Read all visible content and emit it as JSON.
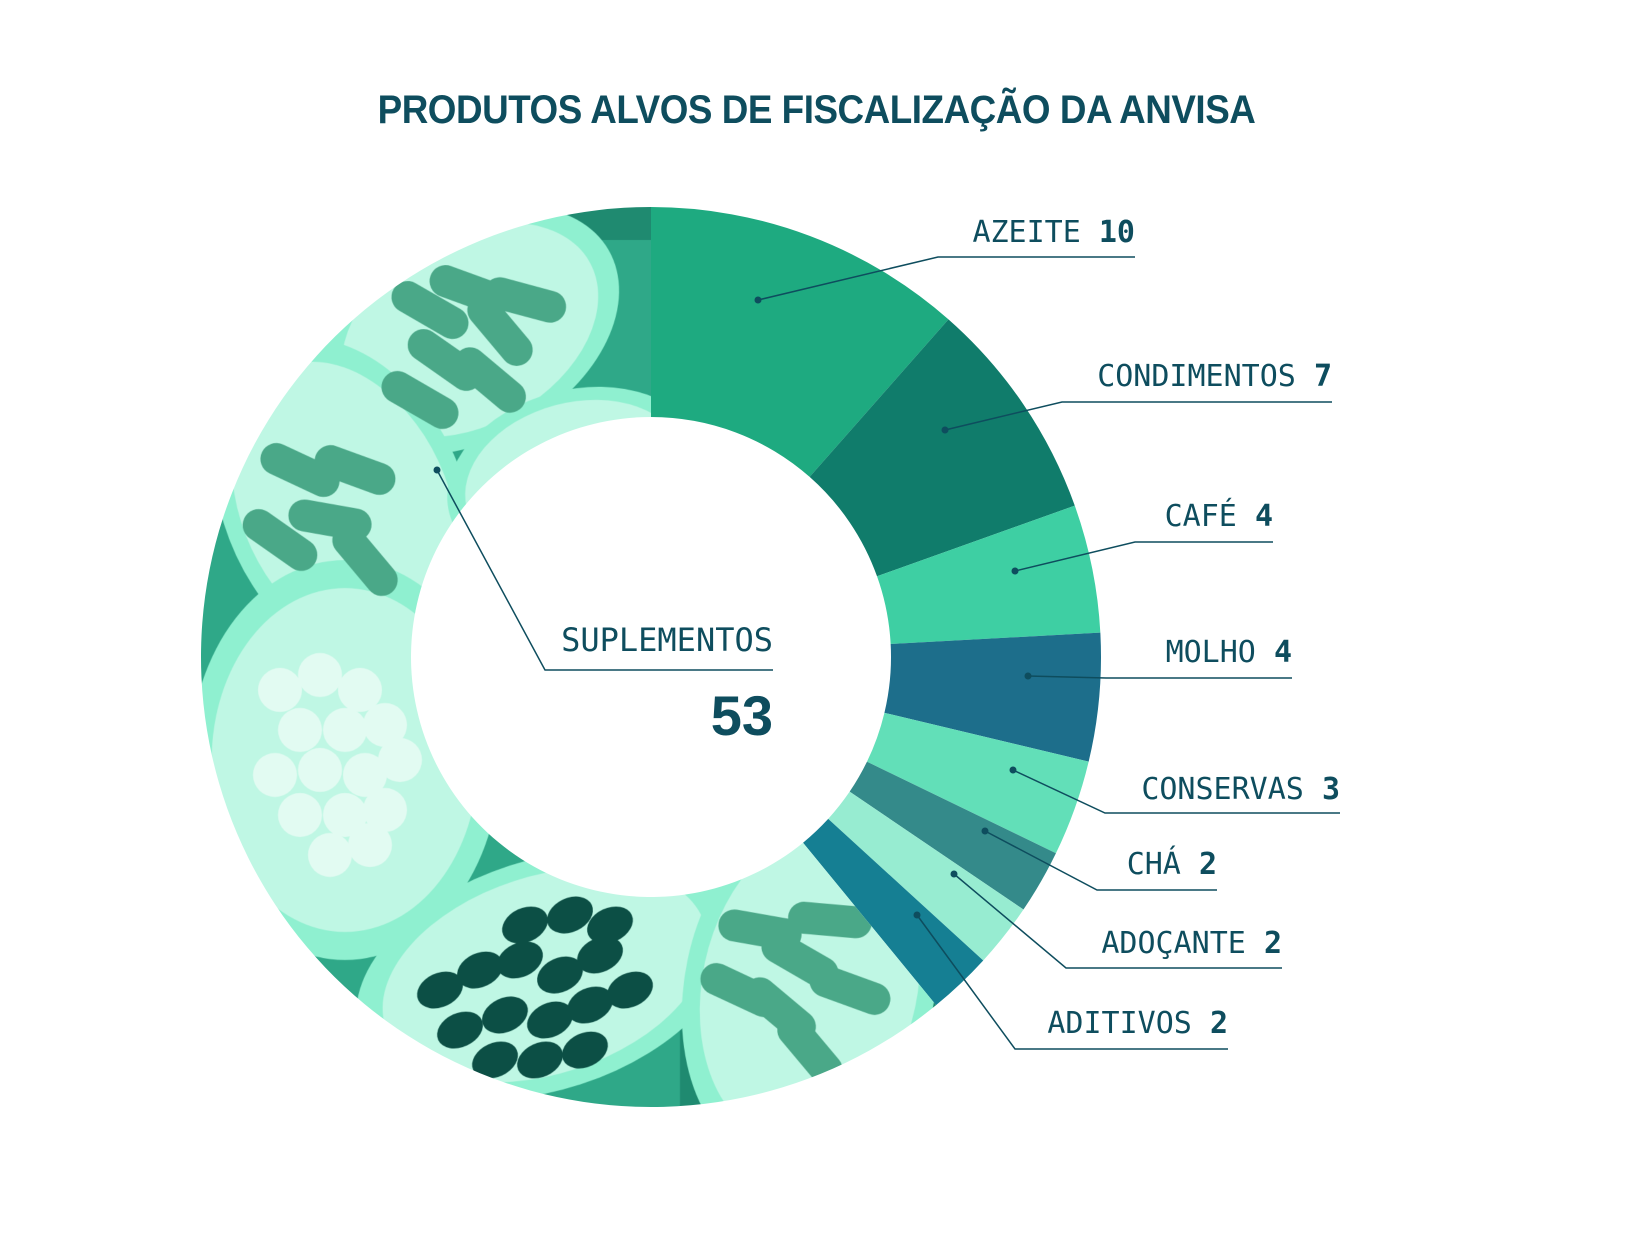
{
  "chart_data": {
    "type": "pie",
    "variant": "donut",
    "title": "PRODUTOS ALVOS DE FISCALIZAÇÃO DA ANVISA",
    "slices": [
      {
        "label": "AZEITE",
        "value": 10,
        "color": "#1eaa80"
      },
      {
        "label": "CONDIMENTOS",
        "value": 7,
        "color": "#107c6b"
      },
      {
        "label": "CAFÉ",
        "value": 4,
        "color": "#3ecfa3"
      },
      {
        "label": "MOLHO",
        "value": 4,
        "color": "#1d6e8b"
      },
      {
        "label": "CONSERVAS",
        "value": 3,
        "color": "#62dfb8"
      },
      {
        "label": "CHÁ",
        "value": 2,
        "color": "#348a8a"
      },
      {
        "label": "ADOÇANTE",
        "value": 2,
        "color": "#97ecd1"
      },
      {
        "label": "ADITIVOS",
        "value": 2,
        "color": "#157f93"
      },
      {
        "label": "SUPLEMENTOS",
        "value": 53,
        "color": "#5ee6bd",
        "photo_fill": true
      }
    ]
  },
  "photo_tint": {
    "light": "#8ff0d0",
    "mid": "#2fa888",
    "dark": "#0c4f45"
  }
}
